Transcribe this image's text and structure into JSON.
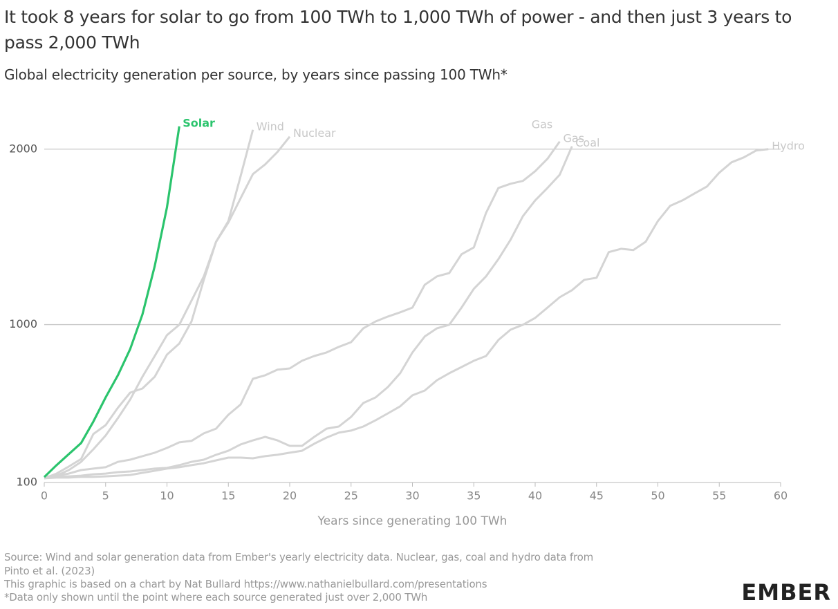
{
  "chart_data": {
    "type": "line",
    "title": "It took 8 years for solar to go from 100 TWh to 1,000 TWh of power - and then just 3 years to pass 2,000 TWh",
    "subtitle": "Global electricity generation per source, by years since passing 100 TWh*",
    "x_label": "Years since generating 100 TWh",
    "x": [
      0,
      1,
      2,
      3,
      4,
      5,
      6,
      7,
      8,
      9,
      10,
      11,
      12,
      13,
      14,
      15,
      16,
      17,
      18,
      19,
      20,
      21,
      22,
      23,
      24,
      25,
      26,
      27,
      28,
      29,
      30,
      31,
      32,
      33,
      34,
      35,
      36,
      37,
      38,
      39,
      40,
      41,
      42,
      43,
      44,
      45,
      46,
      47,
      48,
      49,
      50,
      51,
      52,
      53,
      54,
      55,
      56,
      57,
      58,
      59
    ],
    "xlim": [
      0,
      60
    ],
    "xticks": [
      0,
      5,
      10,
      15,
      20,
      25,
      30,
      35,
      40,
      45,
      50,
      55,
      60
    ],
    "ylim": [
      100,
      2200
    ],
    "yticks": [
      100,
      1000,
      2000
    ],
    "grid": true,
    "series": [
      {
        "name": "Solar",
        "color": "#2bc46d",
        "values": [
          131,
          199,
          262,
          325,
          447,
          585,
          711,
          861,
          1058,
          1334,
          1669,
          2130,
          null,
          null,
          null,
          null,
          null,
          null,
          null,
          null,
          null,
          null,
          null,
          null,
          null,
          null,
          null,
          null,
          null,
          null,
          null,
          null,
          null,
          null,
          null,
          null,
          null,
          null,
          null,
          null,
          null,
          null,
          null,
          null,
          null,
          null,
          null,
          null,
          null,
          null,
          null,
          null,
          null,
          null,
          null,
          null,
          null,
          null,
          null,
          null
        ]
      },
      {
        "name": "Wind",
        "color": "#d4d4d4",
        "values": [
          124,
          139,
          171,
          218,
          289,
          368,
          467,
          573,
          703,
          821,
          940,
          999,
          1137,
          1275,
          1472,
          1590,
          1846,
          2110,
          null,
          null,
          null,
          null,
          null,
          null,
          null,
          null,
          null,
          null,
          null,
          null,
          null,
          null,
          null,
          null,
          null,
          null,
          null,
          null,
          null,
          null,
          null,
          null,
          null,
          null,
          null,
          null,
          null,
          null,
          null,
          null,
          null,
          null,
          null,
          null,
          null,
          null,
          null,
          null,
          null,
          null
        ]
      },
      {
        "name": "Nuclear",
        "color": "#d4d4d4",
        "values": [
          124,
          151,
          191,
          234,
          376,
          427,
          526,
          612,
          636,
          703,
          829,
          892,
          1018,
          1255,
          1472,
          1582,
          1720,
          1858,
          1913,
          1984,
          2071,
          null,
          null,
          null,
          null,
          null,
          null,
          null,
          null,
          null,
          null,
          null,
          null,
          null,
          null,
          null,
          null,
          null,
          null,
          null,
          null,
          null,
          null,
          null,
          null,
          null,
          null,
          null,
          null,
          null,
          null,
          null,
          null,
          null,
          null,
          null,
          null,
          null,
          null,
          null
        ]
      },
      {
        "name": "Gas",
        "color": "#d4d4d4",
        "values": [
          132,
          139,
          151,
          171,
          179,
          187,
          218,
          230,
          250,
          270,
          297,
          329,
          337,
          380,
          407,
          486,
          545,
          691,
          711,
          743,
          750,
          794,
          821,
          841,
          873,
          900,
          979,
          1018,
          1046,
          1070,
          1097,
          1227,
          1275,
          1294,
          1401,
          1440,
          1637,
          1779,
          1803,
          1819,
          1874,
          1945,
          2043,
          null,
          null,
          null,
          null,
          null,
          null,
          null,
          null,
          null,
          null,
          null,
          null,
          null,
          null,
          null,
          null,
          null
        ]
      },
      {
        "name": "Coal",
        "color": "#d4d4d4",
        "values": [
          124,
          132,
          135,
          139,
          147,
          151,
          159,
          163,
          171,
          179,
          183,
          199,
          218,
          230,
          258,
          281,
          317,
          340,
          360,
          340,
          309,
          309,
          360,
          407,
          419,
          474,
          553,
          585,
          644,
          723,
          841,
          932,
          979,
          999,
          1097,
          1204,
          1275,
          1373,
          1484,
          1618,
          1708,
          1779,
          1854,
          2016,
          null,
          null,
          null,
          null,
          null,
          null,
          null,
          null,
          null,
          null,
          null,
          null,
          null,
          null,
          null,
          null
        ]
      },
      {
        "name": "Hydro",
        "color": "#d4d4d4",
        "values": [
          124,
          128,
          128,
          132,
          132,
          135,
          139,
          143,
          155,
          167,
          179,
          187,
          199,
          210,
          226,
          242,
          242,
          238,
          250,
          258,
          270,
          281,
          321,
          356,
          384,
          396,
          419,
          455,
          494,
          534,
          597,
          624,
          683,
          723,
          758,
          794,
          821,
          912,
          971,
          999,
          1038,
          1097,
          1156,
          1196,
          1255,
          1267,
          1413,
          1432,
          1425,
          1472,
          1590,
          1677,
          1708,
          1748,
          1787,
          1866,
          1925,
          1953,
          1992,
          2000
        ]
      }
    ],
    "annotations": [
      "Gas"
    ],
    "source": [
      "Source: Wind and solar generation data from Ember's yearly electricity data. Nuclear, gas, coal and hydro data from",
      "Pinto et al. (2023)",
      "This graphic is based on a chart by Nat Bullard https://www.nathanielbullard.com/presentations",
      "*Data only shown until the point where each source generated just over 2,000 TWh"
    ],
    "logo": "EMBER"
  }
}
